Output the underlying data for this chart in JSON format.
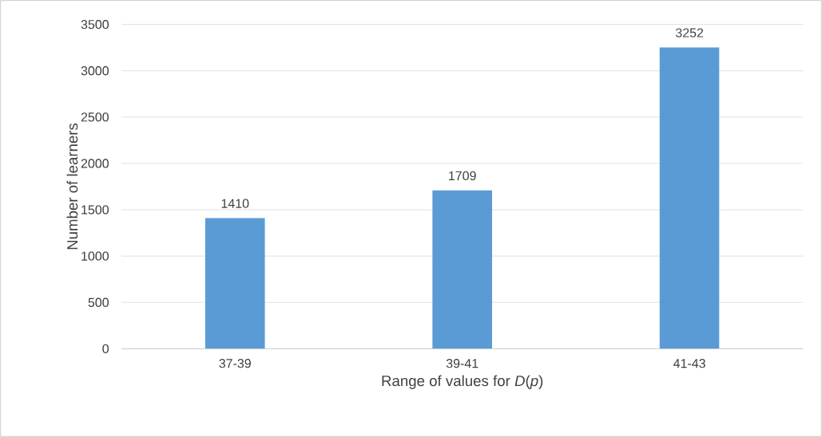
{
  "chart_data": {
    "type": "bar",
    "xlabel": "Range of values for *D*(*p*)",
    "ylabel": "Number of learners",
    "categories": [
      "37-39",
      "39-41",
      "41-43"
    ],
    "values": [
      1410,
      1709,
      3252
    ],
    "color": "#5b9bd5",
    "data_labels": true,
    "ylim": [
      0,
      3500
    ],
    "yticks": [
      0,
      500,
      1000,
      1500,
      2000,
      2500,
      3000,
      3500
    ],
    "grid": "y"
  }
}
